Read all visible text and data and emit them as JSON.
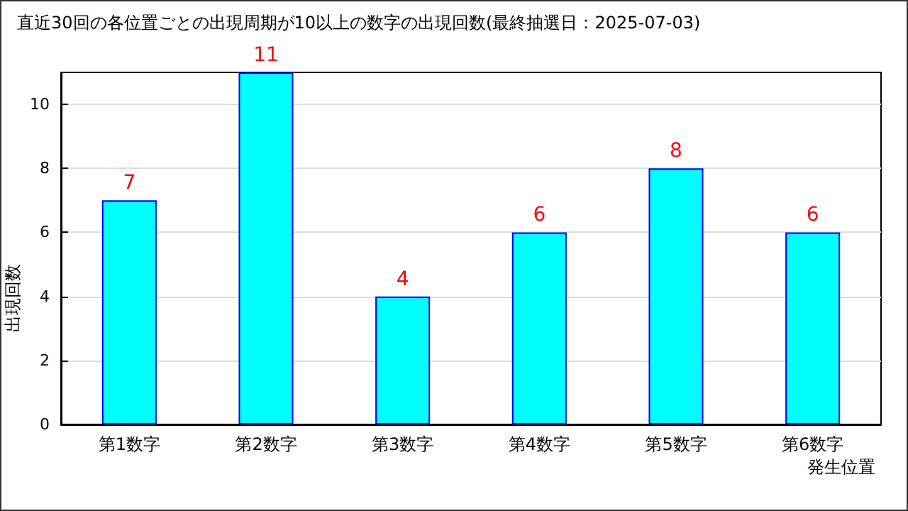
{
  "chart_data": {
    "type": "bar",
    "title": "直近30回の各位置ごとの出現周期が10以上の数字の出現回数(最終抽選日：2025-07-03)",
    "categories": [
      "第1数字",
      "第2数字",
      "第3数字",
      "第4数字",
      "第5数字",
      "第6数字"
    ],
    "values": [
      7,
      11,
      4,
      6,
      8,
      6
    ],
    "color": "#00ffff",
    "ylim": [
      0,
      11
    ],
    "yticks": [
      0,
      2,
      4,
      6,
      8,
      10
    ],
    "grid": "y",
    "data_labels": true,
    "xlabel": "発生位置",
    "ylabel": "出現回数"
  }
}
